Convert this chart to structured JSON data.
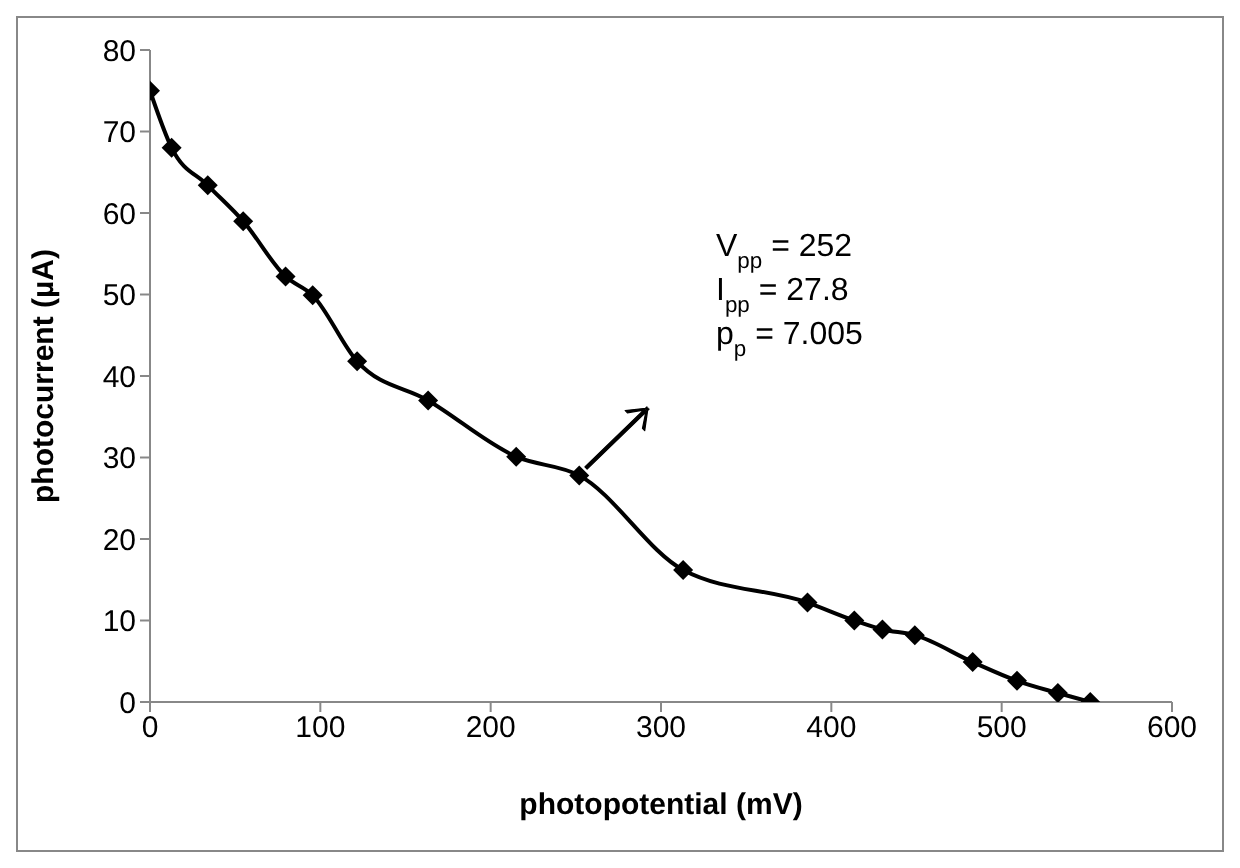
{
  "chart_data": {
    "type": "line",
    "xlabel": "photopotential (mV)",
    "ylabel": "photocurrent (µA)",
    "x": [
      0,
      12.7,
      33.9,
      54.7,
      79.6,
      95.5,
      121.6,
      163.3,
      215,
      252,
      313,
      386,
      413.5,
      430,
      449,
      483,
      509,
      533,
      552
    ],
    "series": [
      {
        "color": "#000000",
        "values": [
          75,
          68,
          63.4,
          59,
          52.2,
          49.9,
          41.8,
          37,
          30.1,
          27.8,
          16.2,
          12.2,
          10,
          8.9,
          8.2,
          4.9,
          2.6,
          1.1,
          0
        ]
      }
    ],
    "xlim": [
      0,
      600
    ],
    "xticks": [
      0,
      100,
      200,
      300,
      400,
      500,
      600
    ],
    "ylim": [
      0,
      80
    ],
    "yticks": [
      0,
      10,
      20,
      30,
      40,
      50,
      60,
      70,
      80
    ],
    "grid": false,
    "legend": false,
    "marker": "diamond",
    "line_style": "solid",
    "annotations": [
      "V$_{pp}$ = 252",
      "I$_{pp}$ = 27.8",
      "p$_{p}$ = 7.005"
    ]
  }
}
